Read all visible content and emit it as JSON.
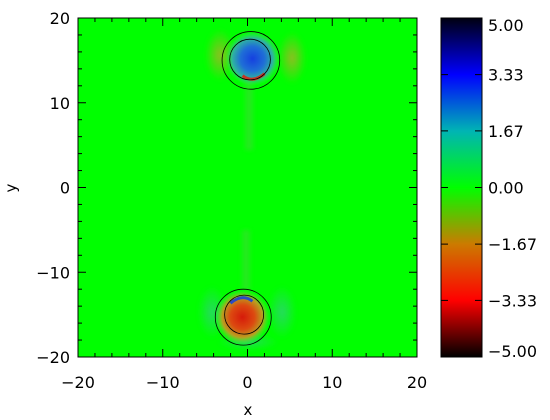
{
  "chart_data": {
    "type": "heatmap",
    "title": "",
    "xlabel": "x",
    "ylabel": "y",
    "xlim": [
      -20,
      20
    ],
    "ylim": [
      -20,
      20
    ],
    "x_ticks": [
      -20,
      -10,
      0,
      10,
      20
    ],
    "y_ticks": [
      -20,
      -10,
      0,
      10,
      20
    ],
    "x_tick_labels": [
      "−20",
      "−10",
      "0",
      "10",
      "20"
    ],
    "y_tick_labels": [
      "−20",
      "−10",
      "0",
      "10",
      "20"
    ],
    "colorbar": {
      "min": -5.0,
      "max": 5.0,
      "tick_values": [
        5.0,
        3.33,
        1.67,
        0.0,
        -1.67,
        -3.33,
        -5.0
      ],
      "tick_labels": [
        "5.00",
        "3.33",
        "1.67",
        "0.00",
        "−1.67",
        "−3.33",
        "−5.00"
      ],
      "colormap_stops": [
        {
          "value": -5.0,
          "color": "#000000"
        },
        {
          "value": -3.33,
          "color": "#ff0000"
        },
        {
          "value": -1.67,
          "color": "#cc7a00"
        },
        {
          "value": 0.0,
          "color": "#00ff00"
        },
        {
          "value": 1.67,
          "color": "#00b4b4"
        },
        {
          "value": 3.33,
          "color": "#0000ff"
        },
        {
          "value": 5.0,
          "color": "#000010"
        }
      ]
    },
    "background_value": 0.0,
    "features": [
      {
        "name": "upper-vortex",
        "cx": 0.6,
        "cy": 15.2,
        "r": 2.2,
        "peak": 4.5
      },
      {
        "name": "lower-vortex",
        "cx": -0.6,
        "cy": -15.3,
        "r": 2.2,
        "peak": -3.6
      }
    ],
    "contours": [
      {
        "name": "upper-inner-circle",
        "cx": 0.3,
        "cy": 15.1,
        "r": 2.4
      },
      {
        "name": "upper-outer-circle",
        "cx": 0.4,
        "cy": 15.0,
        "r": 3.4
      },
      {
        "name": "lower-inner-circle",
        "cx": -0.4,
        "cy": -15.0,
        "r": 2.3
      },
      {
        "name": "lower-outer-circle",
        "cx": -0.5,
        "cy": -15.3,
        "r": 3.3
      }
    ]
  }
}
